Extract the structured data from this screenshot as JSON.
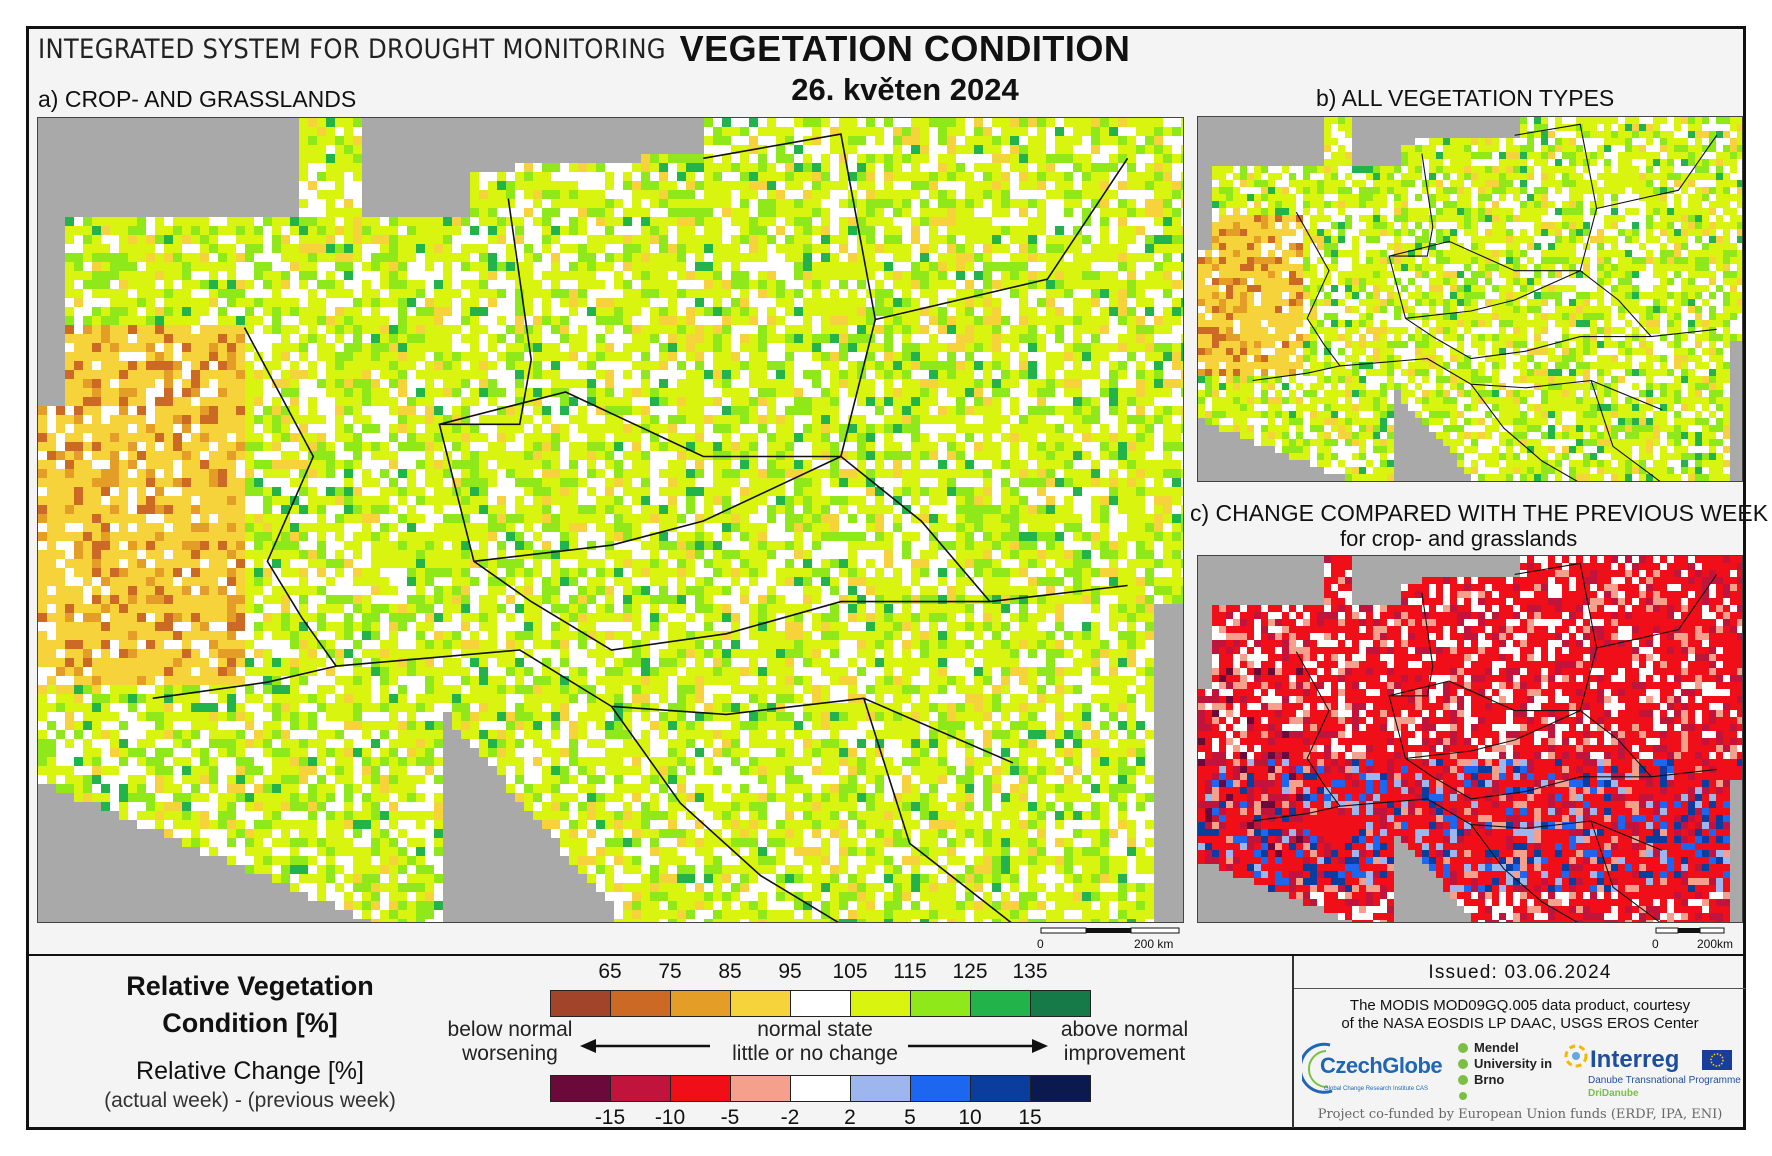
{
  "header": {
    "system_title": "INTEGRATED SYSTEM FOR DROUGHT MONITORING",
    "main_title": "VEGETATION CONDITION",
    "date": "26. květen 2024"
  },
  "panels": {
    "a": {
      "label": "a) CROP- AND GRASSLANDS",
      "scale_zero": "0",
      "scale_km": "200 km"
    },
    "b": {
      "label": "b) ALL VEGETATION TYPES"
    },
    "c": {
      "label": "c) CHANGE COMPARED WITH THE PREVIOUS WEEK",
      "sublabel": "for crop- and grasslands",
      "scale_zero": "0",
      "scale_km": "200km"
    }
  },
  "legend": {
    "rvc_title_line1": "Relative Vegetation",
    "rvc_title_line2": "Condition [%]",
    "rc_title": "Relative Change [%]",
    "rc_subtitle": "(actual week) - (previous week)",
    "rvc_ticks": [
      "65",
      "75",
      "85",
      "95",
      "105",
      "115",
      "125",
      "135"
    ],
    "rvc_colors": [
      "#a1442a",
      "#cc6a25",
      "#e49d27",
      "#f6d23b",
      "#ffffff",
      "#d9f50f",
      "#8ee81a",
      "#22b44a",
      "#157a48"
    ],
    "rc_ticks": [
      "-15",
      "-10",
      "-5",
      "-2",
      "2",
      "5",
      "10",
      "15"
    ],
    "rc_colors": [
      "#6b0a3a",
      "#c0143c",
      "#f00f18",
      "#f5a08c",
      "#ffffff",
      "#9db7ee",
      "#1d67f0",
      "#0b3d9e",
      "#0b1a4e"
    ],
    "left_label_line1": "below normal",
    "left_label_line2": "worsening",
    "center_label_line1": "normal state",
    "center_label_line2": "little or no change",
    "right_label_line1": "above normal",
    "right_label_line2": "improvement"
  },
  "info": {
    "issued": "Issued: 03.06.2024",
    "credit_line1": "The MODIS MOD09GQ.005 data product, courtesy",
    "credit_line2": "of the NASA EOSDIS LP DAAC, USGS EROS Center",
    "logo_czechglobe": "CzechGlobe",
    "logo_czechglobe_sub": "Global Change Research Institute CAS",
    "logo_mendel": "Mendel University in Brno",
    "logo_interreg": "Interreg",
    "logo_interreg_sub1": "Danube Transnational Programme",
    "logo_interreg_sub2": "DriDanube",
    "funded": "Project co-funded by European Union funds (ERDF, IPA, ENI)"
  }
}
